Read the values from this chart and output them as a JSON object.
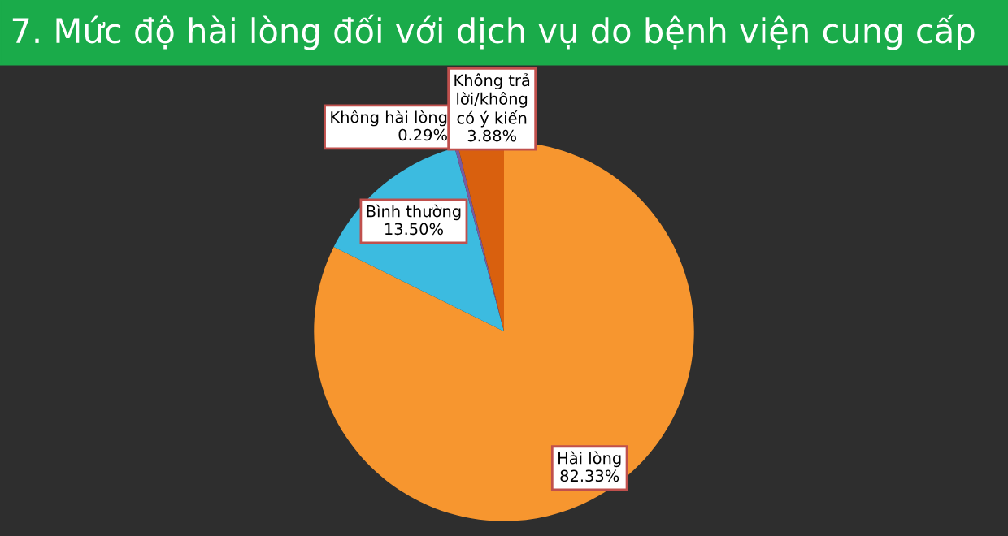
{
  "chart_data": {
    "type": "pie",
    "title": "7. Mức độ hài lòng đối với dịch vụ do bệnh viện cung cấp",
    "categories": [
      "Hài lòng",
      "Bình thường",
      "Không hài lòng",
      "Không trả lời/không có ý kiến"
    ],
    "values": [
      82.33,
      13.5,
      0.29,
      3.88
    ],
    "value_labels": [
      "82.33%",
      "13.50%",
      "0.29%",
      "3.88%"
    ],
    "colors": [
      "#f7962f",
      "#3cbbe0",
      "#7a5aa0",
      "#d9600e"
    ],
    "legend": false
  }
}
